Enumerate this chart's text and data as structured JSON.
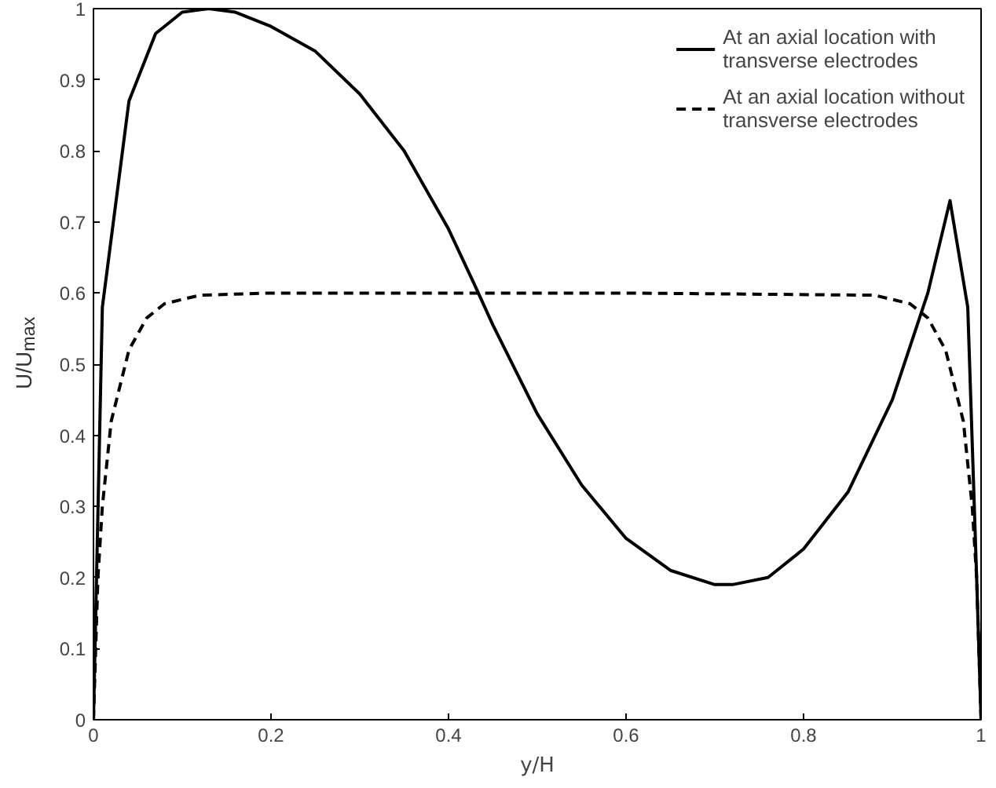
{
  "chart_data": {
    "type": "line",
    "xlabel": "y/H",
    "ylabel": "U/U$_{max}$",
    "xlim": [
      0,
      1
    ],
    "ylim": [
      0,
      1
    ],
    "xticks": [
      0,
      0.2,
      0.4,
      0.6,
      0.8,
      1
    ],
    "yticks": [
      0,
      0.1,
      0.2,
      0.3,
      0.4,
      0.5,
      0.6,
      0.7,
      0.8,
      0.9,
      1
    ],
    "grid": false,
    "legend": "top right",
    "marker": "none",
    "series": [
      {
        "name": "At an axial location with transverse electrodes",
        "color": "#000000",
        "line_style": "solid",
        "x": [
          0,
          0.01,
          0.04,
          0.07,
          0.1,
          0.13,
          0.16,
          0.2,
          0.25,
          0.3,
          0.35,
          0.4,
          0.43,
          0.45,
          0.5,
          0.55,
          0.6,
          0.65,
          0.7,
          0.72,
          0.76,
          0.8,
          0.85,
          0.9,
          0.94,
          0.965,
          0.985,
          0.995,
          1
        ],
        "values": [
          0,
          0.58,
          0.87,
          0.965,
          0.995,
          1.0,
          0.995,
          0.975,
          0.94,
          0.88,
          0.8,
          0.69,
          0.61,
          0.555,
          0.43,
          0.33,
          0.255,
          0.21,
          0.19,
          0.19,
          0.2,
          0.24,
          0.32,
          0.45,
          0.6,
          0.73,
          0.58,
          0.2,
          0
        ]
      },
      {
        "name": "At an axial location without transverse electrodes",
        "color": "#000000",
        "line_style": "dashed",
        "x": [
          0,
          0.005,
          0.01,
          0.02,
          0.04,
          0.06,
          0.08,
          0.12,
          0.2,
          0.4,
          0.6,
          0.88,
          0.92,
          0.94,
          0.96,
          0.98,
          0.99,
          0.995,
          1
        ],
        "values": [
          0,
          0.2,
          0.3,
          0.42,
          0.52,
          0.565,
          0.585,
          0.597,
          0.6,
          0.6,
          0.6,
          0.597,
          0.585,
          0.565,
          0.52,
          0.42,
          0.3,
          0.2,
          0
        ]
      }
    ]
  }
}
